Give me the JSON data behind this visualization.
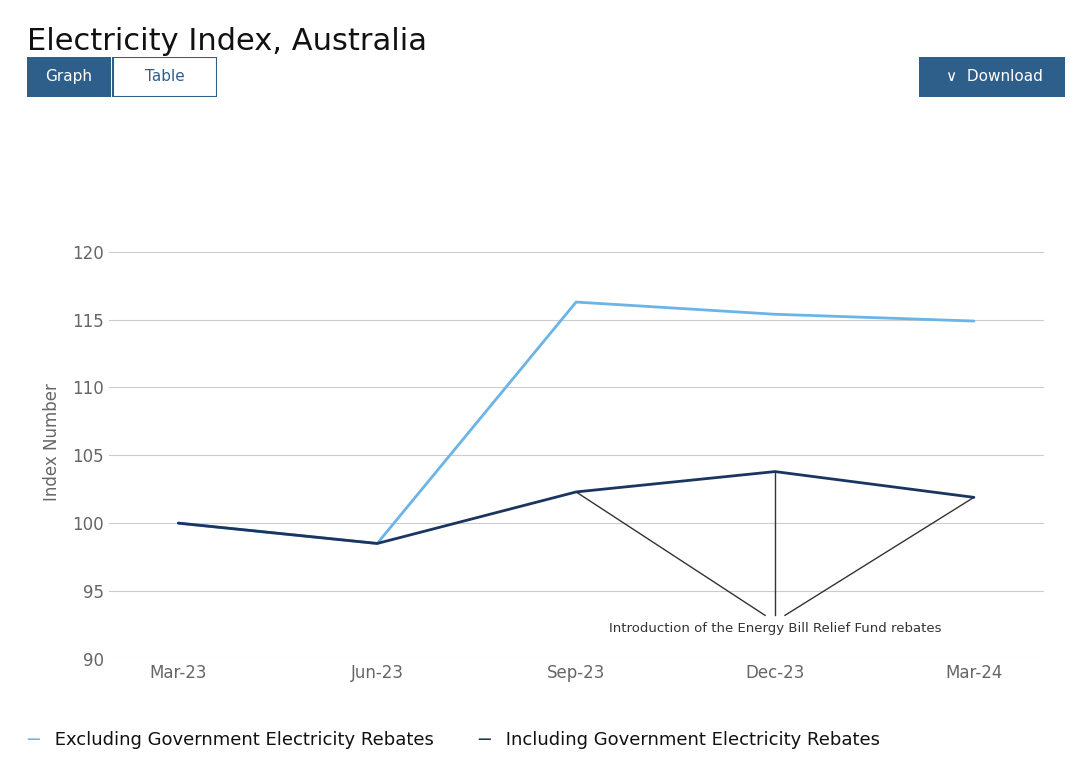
{
  "title": "Electricity Index, Australia",
  "ylabel": "Index Number",
  "ylim": [
    90,
    122
  ],
  "yticks": [
    90,
    95,
    100,
    105,
    110,
    115,
    120
  ],
  "x_labels": [
    "Mar-23",
    "Jun-23",
    "Sep-23",
    "Dec-23",
    "Mar-24"
  ],
  "excluding_rebates": [
    100.0,
    98.5,
    116.3,
    115.4,
    114.9
  ],
  "including_rebates": [
    100.0,
    98.5,
    102.3,
    103.8,
    101.9
  ],
  "line_color_excluding": "#6ab4e8",
  "line_color_including": "#1a3560",
  "annotation_text": "Introduction of the Energy Bill Relief Fund rebates",
  "annotation_color": "#333333",
  "background_color": "#ffffff",
  "grid_color": "#cccccc",
  "title_fontsize": 22,
  "axis_label_fontsize": 12,
  "tick_fontsize": 12,
  "legend_fontsize": 13,
  "tick_color": "#666666",
  "button_bg_color": "#2e5f8a",
  "button_text_color": "#ffffff",
  "table_text_color": "#2e5f8a",
  "table_border_color": "#2e5f8a"
}
